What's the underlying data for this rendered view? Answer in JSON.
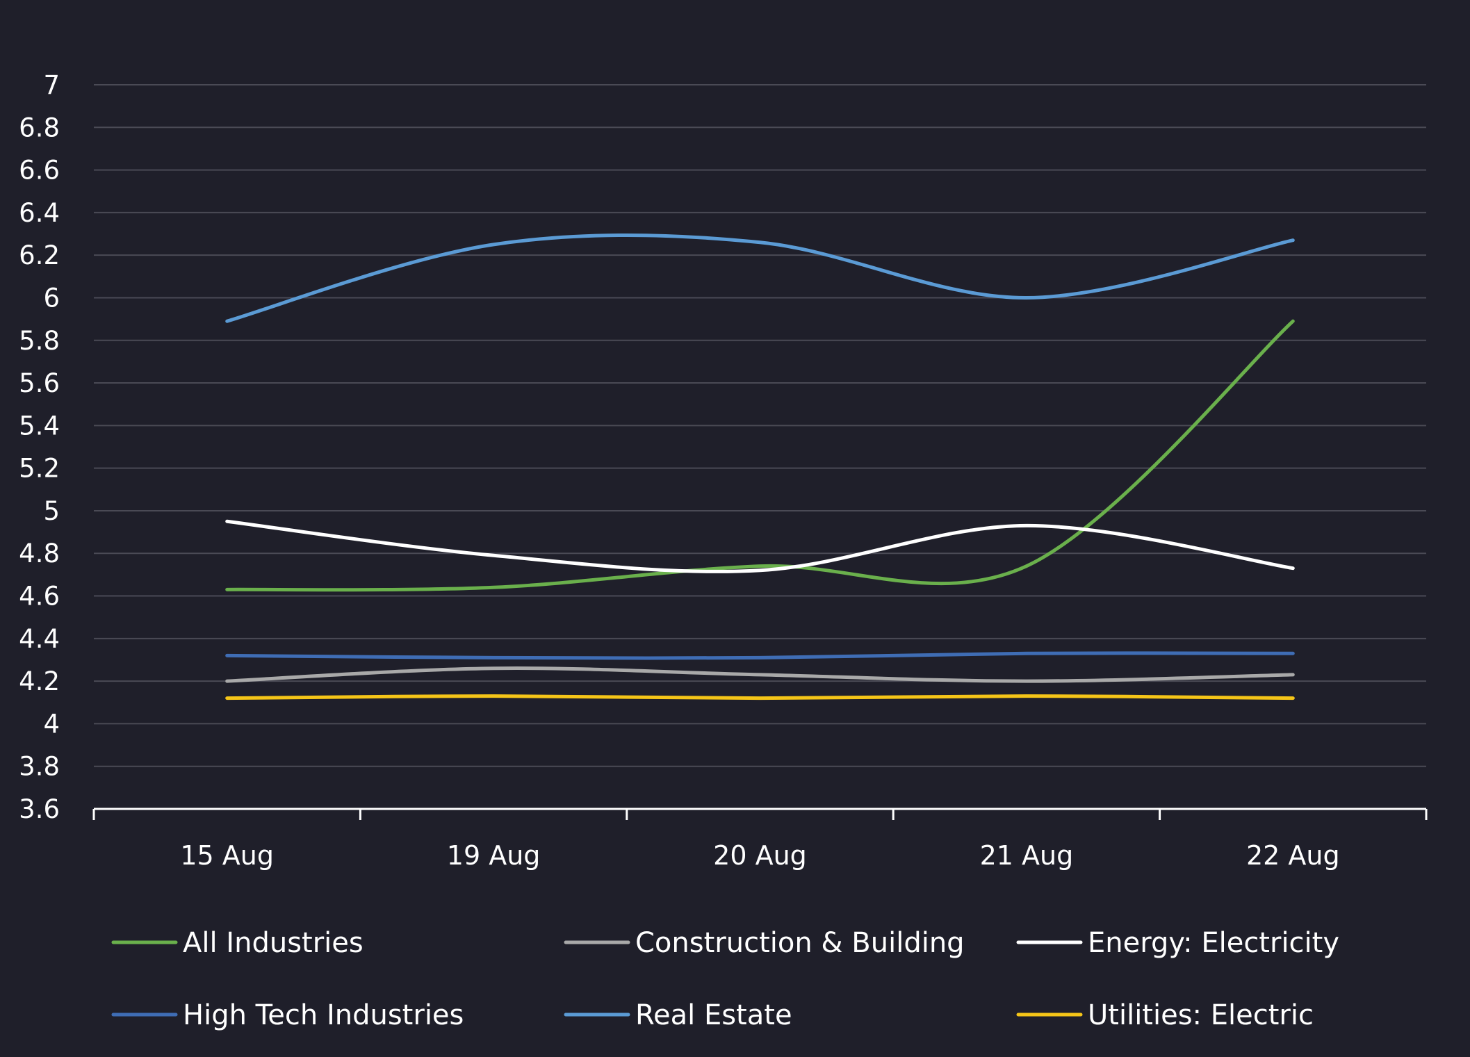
{
  "chart_data": {
    "type": "line",
    "title": "",
    "xlabel": "",
    "ylabel": "",
    "categories": [
      "15 Aug",
      "19 Aug",
      "20 Aug",
      "21 Aug",
      "22 Aug"
    ],
    "ylim": [
      3.6,
      7
    ],
    "yticks": [
      3.6,
      3.8,
      4,
      4.2,
      4.4,
      4.6,
      4.8,
      5,
      5.2,
      5.4,
      5.6,
      5.8,
      6,
      6.2,
      6.4,
      6.6,
      6.8,
      7
    ],
    "ytick_labels": [
      "3.6",
      "3.8",
      "4",
      "4.2",
      "4.4",
      "4.6",
      "4.8",
      "5",
      "5.2",
      "5.4",
      "5.6",
      "5.8",
      "6",
      "6.2",
      "6.4",
      "6.6",
      "6.8",
      "7"
    ],
    "grid": true,
    "smooth": true,
    "legend_position": "bottom",
    "series": [
      {
        "name": "All Industries",
        "color": "#6ab04c",
        "values": [
          4.63,
          4.64,
          4.74,
          4.74,
          5.89
        ]
      },
      {
        "name": "Construction & Building",
        "color": "#a9a9a9",
        "values": [
          4.2,
          4.26,
          4.23,
          4.2,
          4.23
        ]
      },
      {
        "name": "Energy: Electricity",
        "color": "#ffffff",
        "values": [
          4.95,
          4.79,
          4.72,
          4.93,
          4.73
        ]
      },
      {
        "name": "High Tech Industries",
        "color": "#3f6db5",
        "values": [
          4.32,
          4.31,
          4.31,
          4.33,
          4.33
        ]
      },
      {
        "name": "Real Estate",
        "color": "#5b9bd5",
        "values": [
          5.89,
          6.25,
          6.26,
          6.0,
          6.27
        ]
      },
      {
        "name": "Utilities: Electric",
        "color": "#f5c518",
        "values": [
          4.12,
          4.13,
          4.12,
          4.13,
          4.12
        ]
      }
    ],
    "colors": {
      "background": "#1f1f2a",
      "text": "#ffffff",
      "grid": "#4a4a55",
      "axis": "#ffffff"
    }
  }
}
